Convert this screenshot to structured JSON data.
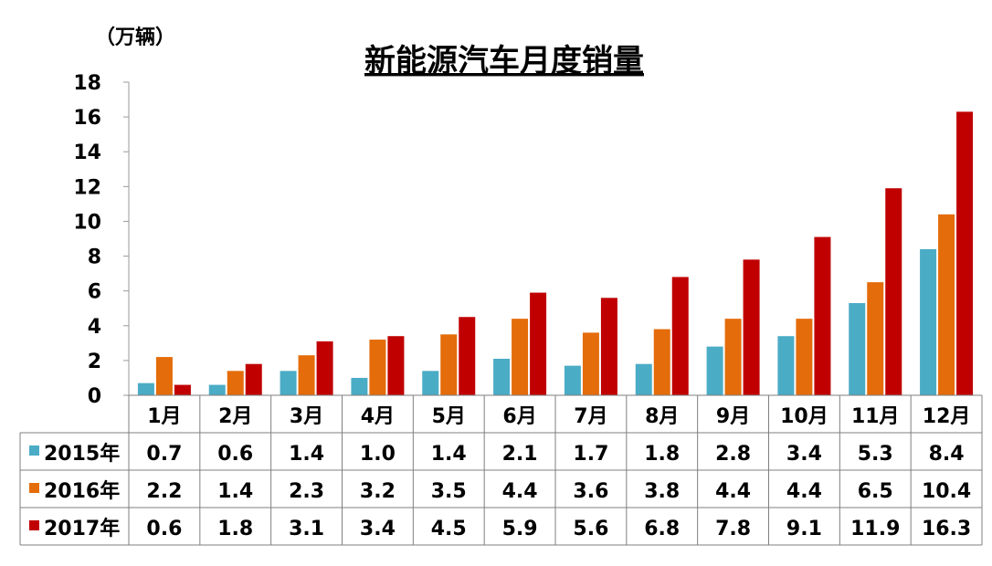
{
  "chart_data": {
    "type": "bar",
    "title": "新能源汽车月度销量",
    "unit_label": "（万辆）",
    "categories": [
      "1月",
      "2月",
      "3月",
      "4月",
      "5月",
      "6月",
      "7月",
      "8月",
      "9月",
      "10月",
      "11月",
      "12月"
    ],
    "series": [
      {
        "name": "2015年",
        "color": "#4BACC6",
        "values": [
          0.7,
          0.6,
          1.4,
          1.0,
          1.4,
          2.1,
          1.7,
          1.8,
          2.8,
          3.4,
          5.3,
          8.4
        ]
      },
      {
        "name": "2016年",
        "color": "#E46C0A",
        "values": [
          2.2,
          1.4,
          2.3,
          3.2,
          3.5,
          4.4,
          3.6,
          3.8,
          4.4,
          4.4,
          6.5,
          10.4
        ]
      },
      {
        "name": "2017年",
        "color": "#C00000",
        "values": [
          0.6,
          1.8,
          3.1,
          3.4,
          4.5,
          5.9,
          5.6,
          6.8,
          7.8,
          9.1,
          11.9,
          16.3
        ]
      }
    ],
    "ylim": [
      0,
      18
    ],
    "yticks": [
      "0",
      "2",
      "4",
      "6",
      "8",
      "10",
      "12",
      "14",
      "16",
      "18"
    ],
    "value_labels": [
      [
        "0.7",
        "0.6",
        "1.4",
        "1.0",
        "1.4",
        "2.1",
        "1.7",
        "1.8",
        "2.8",
        "3.4",
        "5.3",
        "8.4"
      ],
      [
        "2.2",
        "1.4",
        "2.3",
        "3.2",
        "3.5",
        "4.4",
        "3.6",
        "3.8",
        "4.4",
        "4.4",
        "6.5",
        "10.4"
      ],
      [
        "0.6",
        "1.8",
        "3.1",
        "3.4",
        "4.5",
        "5.9",
        "5.6",
        "6.8",
        "7.8",
        "9.1",
        "11.9",
        "16.3"
      ]
    ],
    "data_table": true,
    "grid": false
  }
}
